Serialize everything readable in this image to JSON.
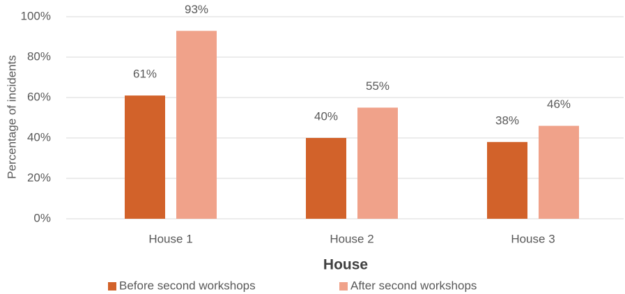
{
  "chart_data": {
    "type": "bar",
    "categories": [
      "House 1",
      "House 2",
      "House 3"
    ],
    "series": [
      {
        "name": "Before second workshops",
        "color": "#d2622a",
        "values": [
          61,
          40,
          38
        ],
        "value_labels": [
          "61%",
          "40%",
          "38%"
        ]
      },
      {
        "name": "After second workshops",
        "color": "#f0a28a",
        "values": [
          93,
          55,
          46
        ],
        "value_labels": [
          "93%",
          "55%",
          "46%"
        ]
      }
    ],
    "x_label": "House",
    "y_label": "Percentage of incidents",
    "ylim": [
      0,
      100
    ],
    "yticks": [
      {
        "value": 0,
        "label": "0%"
      },
      {
        "value": 20,
        "label": "20%"
      },
      {
        "value": 40,
        "label": "40%"
      },
      {
        "value": 60,
        "label": "60%"
      },
      {
        "value": 80,
        "label": "80%"
      },
      {
        "value": 100,
        "label": "100%"
      }
    ],
    "grid": true,
    "legend": "bottom"
  }
}
